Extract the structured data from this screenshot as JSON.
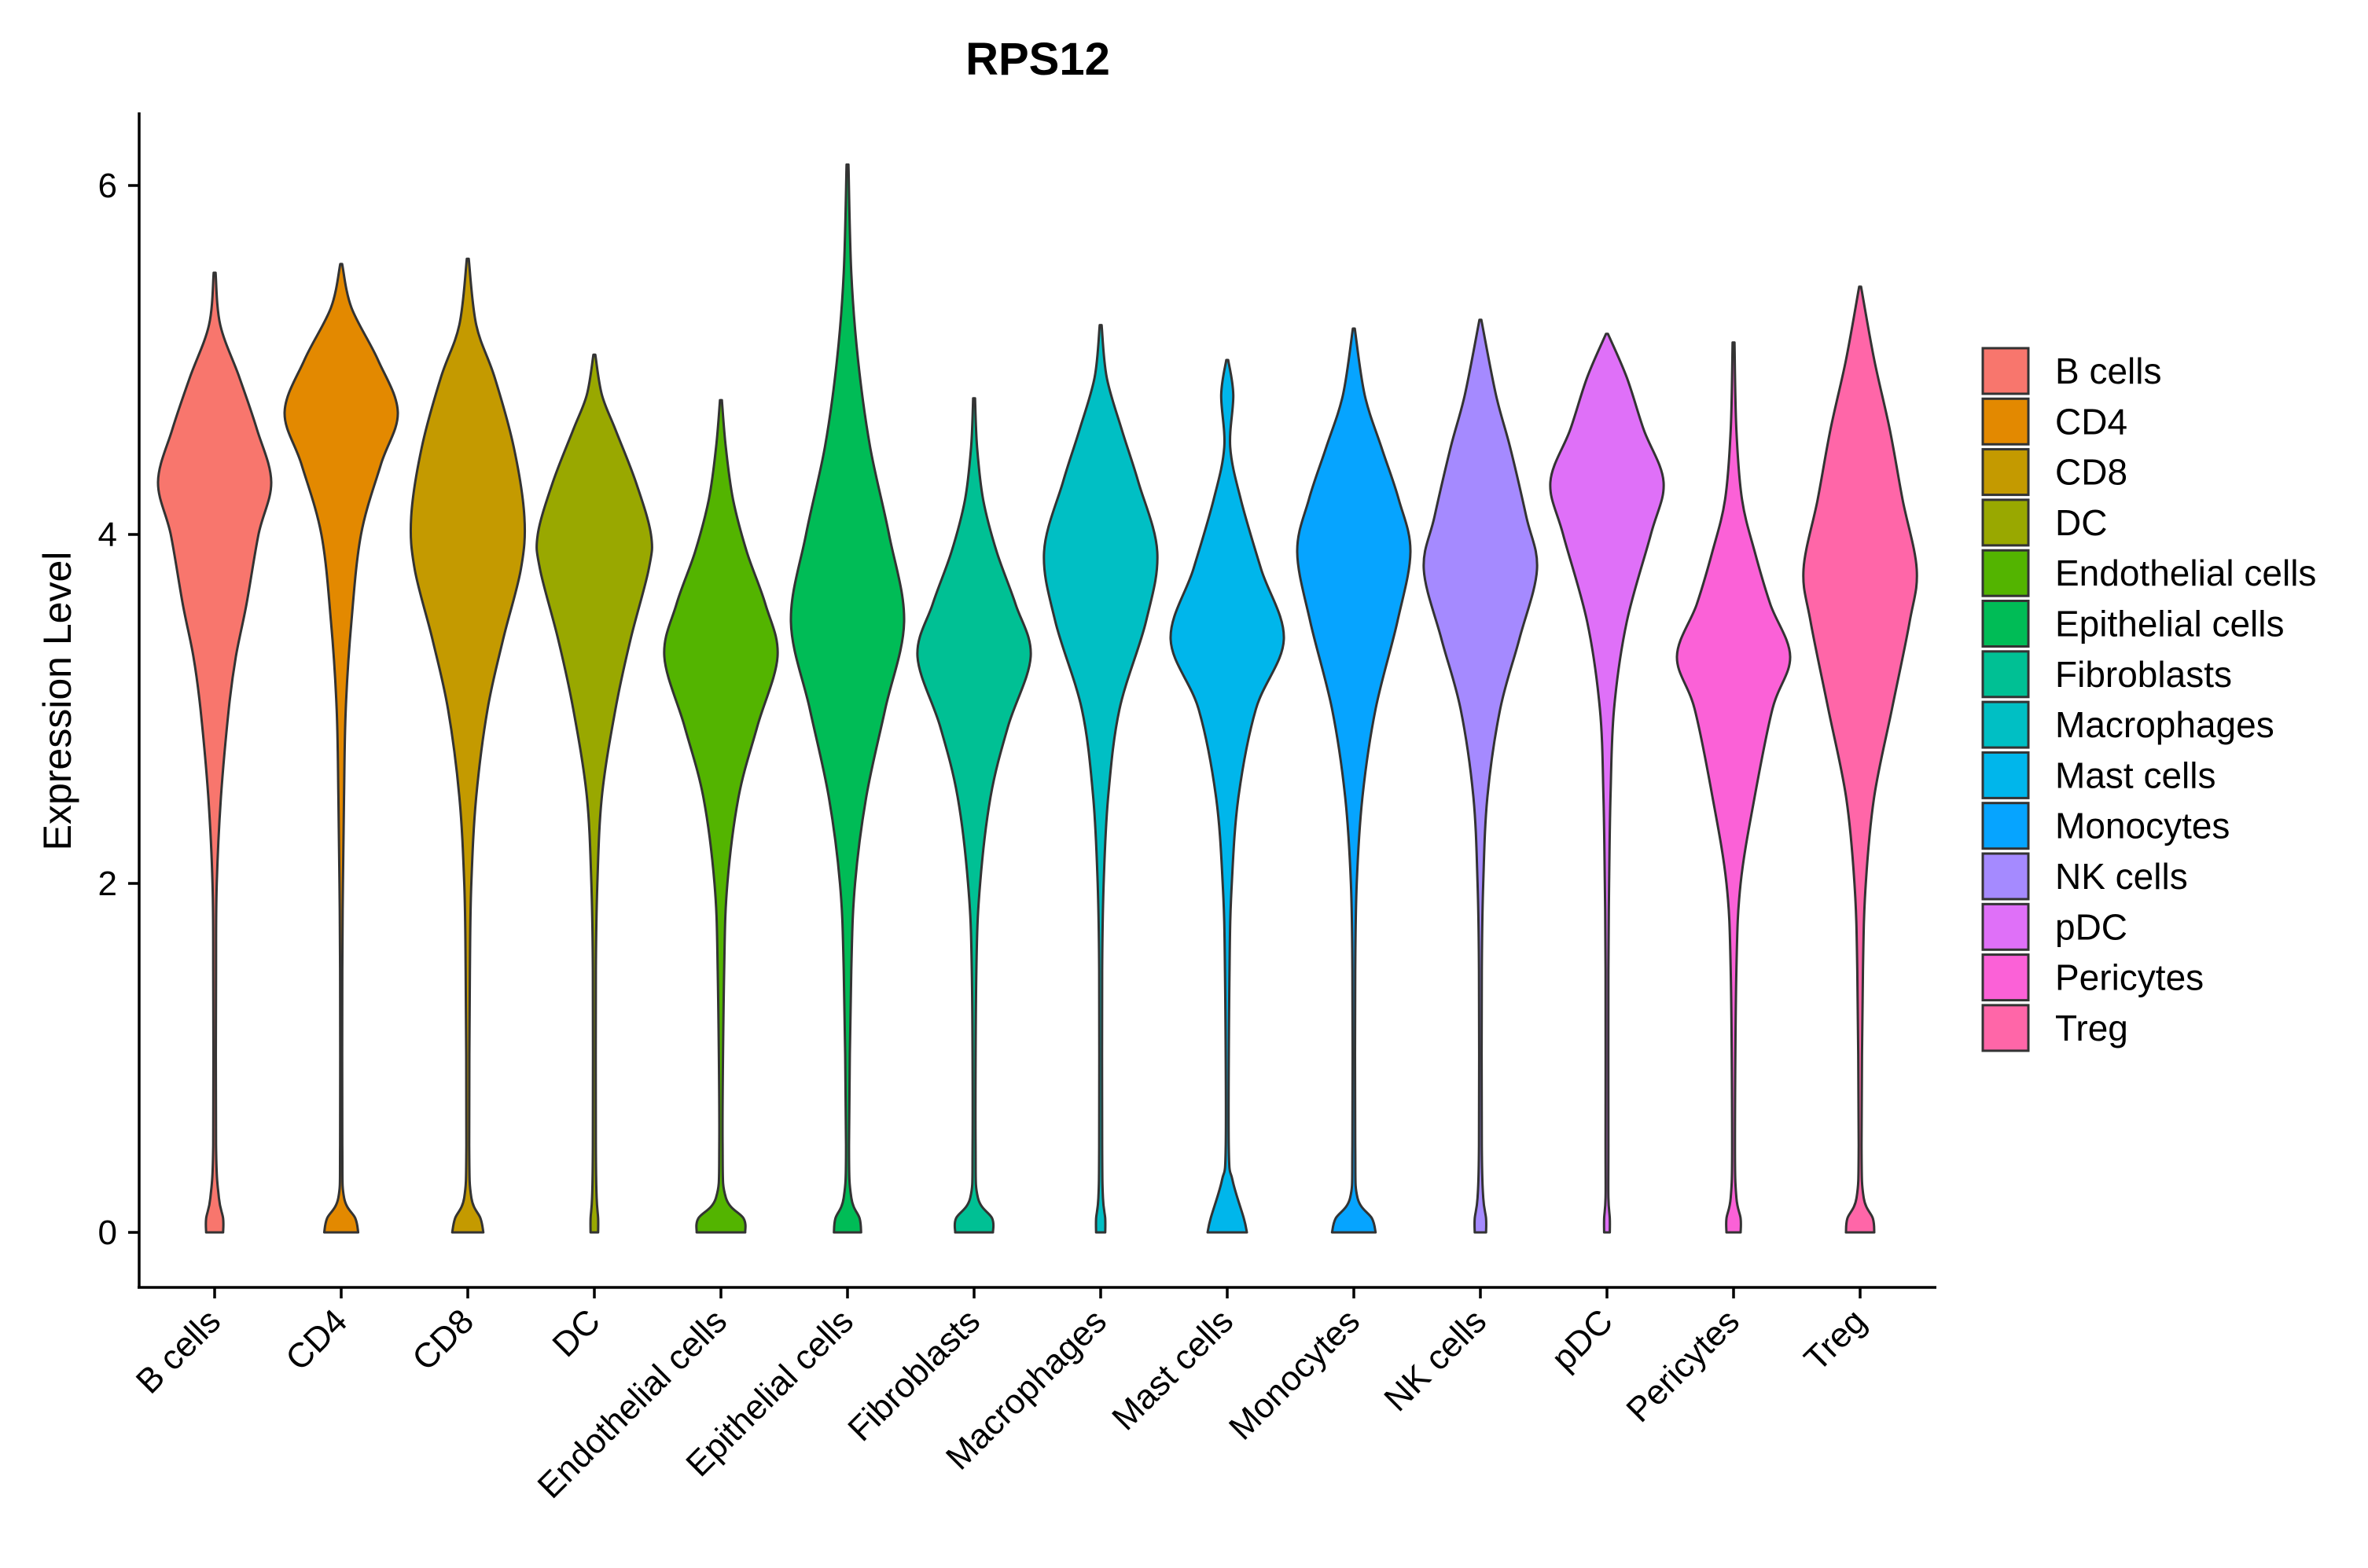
{
  "chart_data": {
    "type": "violin",
    "title": "RPS12",
    "xlabel": "",
    "ylabel": "Expression Level",
    "ylim": [
      -0.3,
      6.4
    ],
    "yticks": [
      0,
      2,
      4,
      6
    ],
    "grid": false,
    "legend_position": "right",
    "categories": [
      "B cells",
      "CD4",
      "CD8",
      "DC",
      "Endothelial cells",
      "Epithelial cells",
      "Fibroblasts",
      "Macrophages",
      "Mast cells",
      "Monocytes",
      "NK cells",
      "pDC",
      "Pericytes",
      "Treg"
    ],
    "colors": [
      "#F8766D",
      "#E38900",
      "#C49A00",
      "#99A800",
      "#53B400",
      "#00BC56",
      "#00C094",
      "#00BFC4",
      "#00B6EB",
      "#06A4FF",
      "#A58AFF",
      "#DF70F8",
      "#FB61D7",
      "#FF66A8"
    ],
    "series": [
      {
        "name": "B cells",
        "max": 5.5,
        "density": [
          [
            0,
            0.12
          ],
          [
            0.08,
            0.12
          ],
          [
            0.2,
            0.06
          ],
          [
            0.5,
            0.02
          ],
          [
            1.5,
            0.02
          ],
          [
            2.0,
            0.03
          ],
          [
            2.5,
            0.09
          ],
          [
            3.0,
            0.2
          ],
          [
            3.3,
            0.3
          ],
          [
            3.6,
            0.45
          ],
          [
            4.0,
            0.62
          ],
          [
            4.3,
            0.8
          ],
          [
            4.6,
            0.6
          ],
          [
            4.9,
            0.35
          ],
          [
            5.2,
            0.08
          ],
          [
            5.5,
            0.0
          ]
        ]
      },
      {
        "name": "CD4",
        "max": 5.55,
        "density": [
          [
            0,
            0.3
          ],
          [
            0.08,
            0.25
          ],
          [
            0.2,
            0.05
          ],
          [
            0.5,
            0.02
          ],
          [
            1.5,
            0.02
          ],
          [
            2.0,
            0.03
          ],
          [
            2.5,
            0.05
          ],
          [
            3.0,
            0.08
          ],
          [
            3.5,
            0.18
          ],
          [
            4.0,
            0.35
          ],
          [
            4.4,
            0.7
          ],
          [
            4.7,
            1.0
          ],
          [
            5.0,
            0.65
          ],
          [
            5.3,
            0.18
          ],
          [
            5.55,
            0.0
          ]
        ]
      },
      {
        "name": "CD8",
        "max": 5.58,
        "density": [
          [
            0,
            0.22
          ],
          [
            0.08,
            0.18
          ],
          [
            0.2,
            0.05
          ],
          [
            0.5,
            0.02
          ],
          [
            1.5,
            0.03
          ],
          [
            2.0,
            0.05
          ],
          [
            2.5,
            0.12
          ],
          [
            3.0,
            0.28
          ],
          [
            3.4,
            0.5
          ],
          [
            3.8,
            0.75
          ],
          [
            4.1,
            0.8
          ],
          [
            4.5,
            0.65
          ],
          [
            4.9,
            0.38
          ],
          [
            5.2,
            0.12
          ],
          [
            5.58,
            0.0
          ]
        ]
      },
      {
        "name": "DC",
        "max": 5.03,
        "density": [
          [
            0,
            0.05
          ],
          [
            0.08,
            0.05
          ],
          [
            0.2,
            0.03
          ],
          [
            0.5,
            0.02
          ],
          [
            1.5,
            0.02
          ],
          [
            2.0,
            0.04
          ],
          [
            2.5,
            0.1
          ],
          [
            3.0,
            0.28
          ],
          [
            3.4,
            0.48
          ],
          [
            3.8,
            0.72
          ],
          [
            4.0,
            0.75
          ],
          [
            4.3,
            0.55
          ],
          [
            4.6,
            0.28
          ],
          [
            4.8,
            0.1
          ],
          [
            5.03,
            0.0
          ]
        ]
      },
      {
        "name": "Endothelial cells",
        "max": 4.77,
        "density": [
          [
            0,
            0.3
          ],
          [
            0.08,
            0.28
          ],
          [
            0.2,
            0.06
          ],
          [
            0.5,
            0.02
          ],
          [
            1.5,
            0.04
          ],
          [
            2.0,
            0.08
          ],
          [
            2.5,
            0.22
          ],
          [
            2.9,
            0.45
          ],
          [
            3.3,
            0.7
          ],
          [
            3.6,
            0.55
          ],
          [
            3.9,
            0.32
          ],
          [
            4.2,
            0.15
          ],
          [
            4.5,
            0.06
          ],
          [
            4.77,
            0.0
          ]
        ]
      },
      {
        "name": "Epithelial cells",
        "max": 6.12,
        "density": [
          [
            0,
            0.18
          ],
          [
            0.08,
            0.16
          ],
          [
            0.2,
            0.05
          ],
          [
            0.5,
            0.02
          ],
          [
            1.5,
            0.05
          ],
          [
            2.0,
            0.1
          ],
          [
            2.5,
            0.25
          ],
          [
            3.0,
            0.5
          ],
          [
            3.5,
            0.75
          ],
          [
            4.0,
            0.55
          ],
          [
            4.5,
            0.3
          ],
          [
            5.0,
            0.14
          ],
          [
            5.5,
            0.05
          ],
          [
            6.12,
            0.0
          ]
        ]
      },
      {
        "name": "Fibroblasts",
        "max": 4.78,
        "density": [
          [
            0,
            0.25
          ],
          [
            0.08,
            0.24
          ],
          [
            0.2,
            0.05
          ],
          [
            0.5,
            0.02
          ],
          [
            1.5,
            0.03
          ],
          [
            2.0,
            0.08
          ],
          [
            2.5,
            0.22
          ],
          [
            2.9,
            0.45
          ],
          [
            3.3,
            0.75
          ],
          [
            3.6,
            0.55
          ],
          [
            3.9,
            0.3
          ],
          [
            4.2,
            0.12
          ],
          [
            4.5,
            0.04
          ],
          [
            4.78,
            0.0
          ]
        ]
      },
      {
        "name": "Macrophages",
        "max": 5.2,
        "density": [
          [
            0,
            0.06
          ],
          [
            0.08,
            0.06
          ],
          [
            0.2,
            0.03
          ],
          [
            0.5,
            0.02
          ],
          [
            1.5,
            0.02
          ],
          [
            2.0,
            0.04
          ],
          [
            2.5,
            0.1
          ],
          [
            3.0,
            0.25
          ],
          [
            3.5,
            0.6
          ],
          [
            3.9,
            0.75
          ],
          [
            4.3,
            0.5
          ],
          [
            4.6,
            0.28
          ],
          [
            4.9,
            0.08
          ],
          [
            5.2,
            0.0
          ]
        ]
      },
      {
        "name": "Mast cells",
        "max": 5.0,
        "density": [
          [
            0,
            0.26
          ],
          [
            0.08,
            0.22
          ],
          [
            0.3,
            0.07
          ],
          [
            0.5,
            0.02
          ],
          [
            1.5,
            0.03
          ],
          [
            2.0,
            0.06
          ],
          [
            2.5,
            0.15
          ],
          [
            3.0,
            0.38
          ],
          [
            3.4,
            0.75
          ],
          [
            3.8,
            0.45
          ],
          [
            4.2,
            0.18
          ],
          [
            4.5,
            0.04
          ],
          [
            4.8,
            0.08
          ],
          [
            5.0,
            0.0
          ]
        ]
      },
      {
        "name": "Monocytes",
        "max": 5.18,
        "density": [
          [
            0,
            0.3
          ],
          [
            0.08,
            0.25
          ],
          [
            0.2,
            0.05
          ],
          [
            0.5,
            0.02
          ],
          [
            1.5,
            0.02
          ],
          [
            2.0,
            0.04
          ],
          [
            2.5,
            0.12
          ],
          [
            3.0,
            0.3
          ],
          [
            3.5,
            0.6
          ],
          [
            3.9,
            0.78
          ],
          [
            4.2,
            0.62
          ],
          [
            4.5,
            0.38
          ],
          [
            4.8,
            0.15
          ],
          [
            5.18,
            0.0
          ]
        ]
      },
      {
        "name": "NK cells",
        "max": 5.23,
        "density": [
          [
            0,
            0.08
          ],
          [
            0.08,
            0.08
          ],
          [
            0.2,
            0.04
          ],
          [
            0.5,
            0.02
          ],
          [
            1.5,
            0.02
          ],
          [
            2.0,
            0.04
          ],
          [
            2.5,
            0.1
          ],
          [
            3.0,
            0.28
          ],
          [
            3.4,
            0.55
          ],
          [
            3.8,
            0.8
          ],
          [
            4.1,
            0.65
          ],
          [
            4.5,
            0.42
          ],
          [
            4.8,
            0.22
          ],
          [
            5.23,
            0.0
          ]
        ]
      },
      {
        "name": "pDC",
        "max": 5.15,
        "density": [
          [
            0,
            0.04
          ],
          [
            0.08,
            0.04
          ],
          [
            0.2,
            0.02
          ],
          [
            0.5,
            0.02
          ],
          [
            1.5,
            0.02
          ],
          [
            2.0,
            0.03
          ],
          [
            2.5,
            0.05
          ],
          [
            3.0,
            0.1
          ],
          [
            3.5,
            0.28
          ],
          [
            4.0,
            0.62
          ],
          [
            4.3,
            0.8
          ],
          [
            4.6,
            0.52
          ],
          [
            4.9,
            0.28
          ],
          [
            5.15,
            0.0
          ]
        ]
      },
      {
        "name": "Pericytes",
        "max": 5.1,
        "density": [
          [
            0,
            0.1
          ],
          [
            0.08,
            0.1
          ],
          [
            0.2,
            0.04
          ],
          [
            0.5,
            0.02
          ],
          [
            1.5,
            0.04
          ],
          [
            2.0,
            0.1
          ],
          [
            2.5,
            0.3
          ],
          [
            3.0,
            0.55
          ],
          [
            3.3,
            0.8
          ],
          [
            3.6,
            0.52
          ],
          [
            3.9,
            0.3
          ],
          [
            4.2,
            0.12
          ],
          [
            4.6,
            0.04
          ],
          [
            5.1,
            0.0
          ]
        ]
      },
      {
        "name": "Treg",
        "max": 5.42,
        "density": [
          [
            0,
            0.2
          ],
          [
            0.08,
            0.18
          ],
          [
            0.2,
            0.05
          ],
          [
            0.5,
            0.02
          ],
          [
            1.5,
            0.04
          ],
          [
            2.0,
            0.08
          ],
          [
            2.5,
            0.2
          ],
          [
            3.0,
            0.45
          ],
          [
            3.5,
            0.7
          ],
          [
            3.8,
            0.8
          ],
          [
            4.2,
            0.6
          ],
          [
            4.6,
            0.42
          ],
          [
            5.0,
            0.2
          ],
          [
            5.42,
            0.0
          ]
        ]
      }
    ]
  }
}
